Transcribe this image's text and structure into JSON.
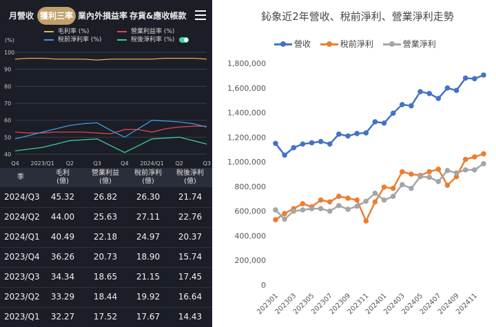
{
  "tabs": [
    {
      "label": "月營收",
      "active": false
    },
    {
      "label": "獲利三率",
      "active": true
    },
    {
      "label": "業內外損益率",
      "active": false
    },
    {
      "label": "存貨&應收帳款",
      "active": false
    }
  ],
  "margin_legend": [
    {
      "label": "毛利率 (%)",
      "color": "#e6b34a"
    },
    {
      "label": "營業利益率 (%)",
      "color": "#e0454f"
    },
    {
      "label": "稅前淨利率 (%)",
      "color": "#3b9ee0"
    },
    {
      "label": "稅後淨利率 (%)",
      "color": "#3ecf9a"
    }
  ],
  "table": {
    "headers": [
      {
        "l1": "季",
        "l2": ""
      },
      {
        "l1": "毛利",
        "l2": "(億)"
      },
      {
        "l1": "營業利益",
        "l2": "(億)"
      },
      {
        "l1": "稅前淨利",
        "l2": "(億)"
      },
      {
        "l1": "稅後淨利",
        "l2": "(億)"
      }
    ],
    "rows": [
      [
        "2024/Q3",
        "45.32",
        "26.82",
        "26.30",
        "21.74"
      ],
      [
        "2024/Q2",
        "44.00",
        "25.63",
        "27.11",
        "22.76"
      ],
      [
        "2024/Q1",
        "40.49",
        "22.18",
        "24.97",
        "20.37"
      ],
      [
        "2023/Q4",
        "36.26",
        "20.73",
        "18.90",
        "15.74"
      ],
      [
        "2023/Q3",
        "34.34",
        "18.65",
        "21.15",
        "17.45"
      ],
      [
        "2023/Q2",
        "33.29",
        "18.44",
        "19.92",
        "16.64"
      ],
      [
        "2023/Q1",
        "32.27",
        "17.52",
        "17.67",
        "14.43"
      ]
    ]
  },
  "chart_data": [
    {
      "type": "line",
      "ylabel": "(%)",
      "ylim": [
        40,
        100
      ],
      "yticks": [
        40,
        50,
        60,
        70,
        80,
        90,
        100
      ],
      "xtick_labels": [
        "Q4",
        "2023/Q1",
        "Q2",
        "Q3",
        "Q4",
        "2024/Q1",
        "Q2",
        "Q3"
      ],
      "grid": true,
      "series": [
        {
          "name": "毛利率 (%)",
          "color": "#e6b34a",
          "values": [
            96,
            96.5,
            96.5,
            96,
            96,
            96,
            95.5,
            96,
            96,
            96,
            96,
            96.5,
            96.5,
            96.5,
            96
          ]
        },
        {
          "name": "營業利益率 (%)",
          "color": "#e0454f",
          "values": [
            53,
            52.5,
            52.5,
            53,
            53,
            53,
            52.5,
            52,
            54.5,
            54.5,
            53,
            55,
            56,
            56.5,
            56.5
          ]
        },
        {
          "name": "稅前淨利率 (%)",
          "color": "#3b9ee0",
          "values": [
            49,
            51,
            53,
            55,
            57,
            58,
            58.5,
            54,
            50,
            55,
            60,
            59.5,
            59,
            58,
            56
          ]
        },
        {
          "name": "稅後淨利率 (%)",
          "color": "#3ecf9a",
          "values": [
            42,
            43,
            44,
            46,
            48,
            48.5,
            49,
            45,
            41,
            45,
            49,
            49.5,
            50,
            48,
            46
          ]
        }
      ]
    },
    {
      "type": "line",
      "title": "鈊象近2年營收、稅前淨利、營業淨利走勢",
      "categories": [
        "202301",
        "202302",
        "202303",
        "202304",
        "202305",
        "202306",
        "202307",
        "202308",
        "202309",
        "202310",
        "202311",
        "202312",
        "202401",
        "202402",
        "202403",
        "202404",
        "202405",
        "202406",
        "202407",
        "202408",
        "202409",
        "202410",
        "202411",
        "202412"
      ],
      "xtick_labels": [
        "202301",
        "202303",
        "202305",
        "202307",
        "202309",
        "202311",
        "202401",
        "202403",
        "202405",
        "202407",
        "202409",
        "202411"
      ],
      "ylim": [
        0,
        1800000
      ],
      "yticks": [
        0,
        200000,
        400000,
        600000,
        800000,
        1000000,
        1200000,
        1400000,
        1600000,
        1800000
      ],
      "legend": "top",
      "grid": false,
      "series": [
        {
          "name": "營收",
          "color": "#4472c4",
          "values": [
            1150000,
            1055000,
            1115000,
            1145000,
            1155000,
            1165000,
            1145000,
            1225000,
            1210000,
            1230000,
            1235000,
            1325000,
            1315000,
            1395000,
            1465000,
            1455000,
            1570000,
            1555000,
            1515000,
            1600000,
            1580000,
            1680000,
            1675000,
            1705000
          ]
        },
        {
          "name": "稅前淨利",
          "color": "#ed7d31",
          "values": [
            530000,
            580000,
            620000,
            660000,
            635000,
            690000,
            675000,
            720000,
            705000,
            690000,
            520000,
            675000,
            795000,
            785000,
            920000,
            900000,
            890000,
            920000,
            940000,
            810000,
            880000,
            1020000,
            1040000,
            1065000
          ]
        },
        {
          "name": "營業淨利",
          "color": "#a5a5a5",
          "values": [
            610000,
            535000,
            600000,
            610000,
            620000,
            620000,
            600000,
            645000,
            615000,
            640000,
            680000,
            745000,
            690000,
            720000,
            815000,
            785000,
            880000,
            875000,
            840000,
            930000,
            910000,
            935000,
            935000,
            985000
          ]
        }
      ]
    }
  ]
}
